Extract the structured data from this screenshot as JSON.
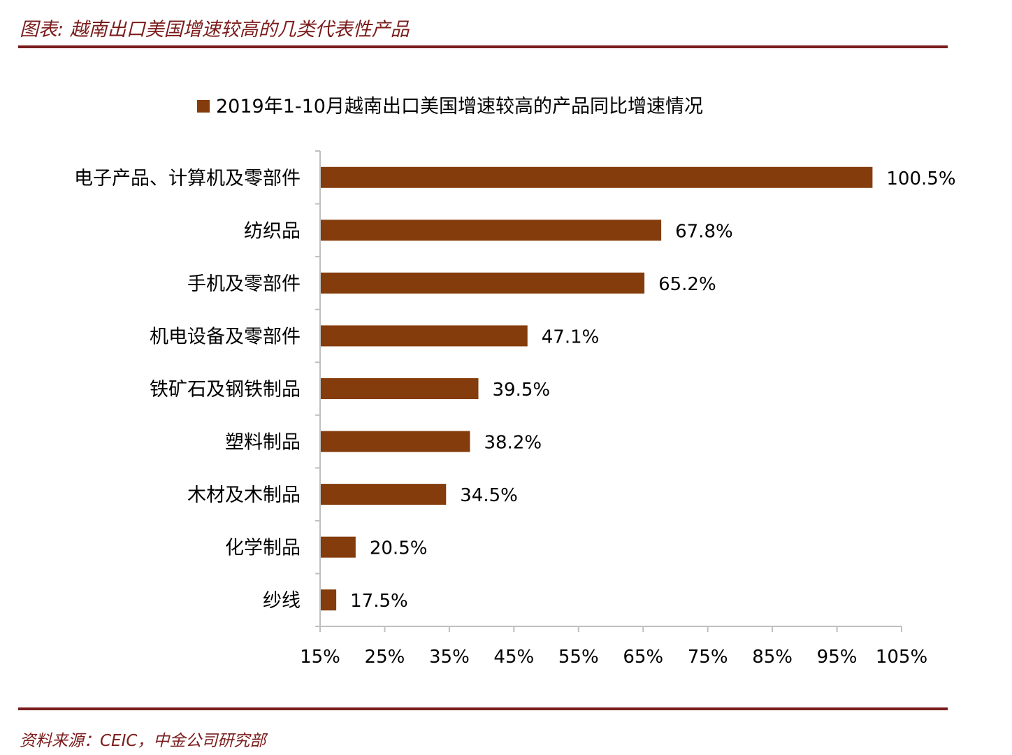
{
  "figure": {
    "title": "图表: 越南出口美国增速较高的几类代表性产品",
    "source": "资料来源：CEIC，中金公司研究部"
  },
  "colors": {
    "bar": "#843c0c",
    "accent": "#7b1c1c",
    "axis": "#bfbfbf",
    "text": "#000000"
  },
  "chart_data": {
    "type": "bar",
    "orientation": "horizontal",
    "title": "",
    "xlabel": "",
    "ylabel": "",
    "legend": {
      "position": "top",
      "entries": [
        "2019年1-10月越南出口美国增速较高的产品同比增速情况"
      ]
    },
    "categories": [
      "电子产品、计算机及零部件",
      "纺织品",
      "手机及零部件",
      "机电设备及零部件",
      "铁矿石及钢铁制品",
      "塑料制品",
      "木材及木制品",
      "化学制品",
      "纱线"
    ],
    "series": [
      {
        "name": "2019年1-10月越南出口美国增速较高的产品同比增速情况",
        "values": [
          100.5,
          67.8,
          65.2,
          47.1,
          39.5,
          38.2,
          34.5,
          20.5,
          17.5
        ],
        "labels": [
          "100.5%",
          "67.8%",
          "65.2%",
          "47.1%",
          "39.5%",
          "38.2%",
          "34.5%",
          "20.5%",
          "17.5%"
        ]
      }
    ],
    "xlim": [
      15,
      105
    ],
    "xticks": [
      15,
      25,
      35,
      45,
      55,
      65,
      75,
      85,
      95,
      105
    ],
    "xtick_labels": [
      "15%",
      "25%",
      "35%",
      "45%",
      "55%",
      "65%",
      "75%",
      "85%",
      "95%",
      "105%"
    ],
    "grid": false
  }
}
